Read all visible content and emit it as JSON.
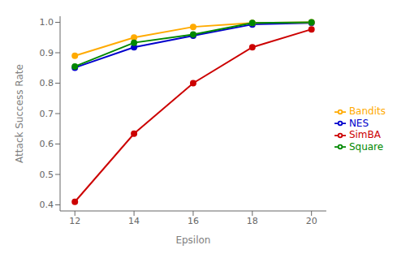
{
  "chart_data": {
    "type": "line",
    "xlabel": "Epsilon",
    "ylabel": "Attack Success Rate",
    "x": [
      12,
      14,
      16,
      18,
      20
    ],
    "series": [
      {
        "name": "NES",
        "color": "#0000cc",
        "values": [
          0.851,
          0.918,
          0.956,
          0.993,
          0.998
        ]
      },
      {
        "name": "Bandits",
        "color": "#ffaa00",
        "values": [
          0.89,
          0.95,
          0.985,
          0.998,
          1.0
        ]
      },
      {
        "name": "Square",
        "color": "#008800",
        "values": [
          0.855,
          0.933,
          0.96,
          0.998,
          1.0
        ]
      },
      {
        "name": "SimBA",
        "color": "#cc0000",
        "values": [
          0.41,
          0.634,
          0.8,
          0.918,
          0.977
        ]
      }
    ],
    "xlim": [
      11.5,
      20.5
    ],
    "ylim": [
      0.38,
      1.02
    ],
    "xticks": [
      12,
      14,
      16,
      18,
      20
    ],
    "yticks": [
      0.4,
      0.5,
      0.6,
      0.7,
      0.8,
      0.9,
      {
        "value": 1.0,
        "label": "1.0"
      }
    ],
    "marker": "circle",
    "grid": false,
    "legend": "right"
  }
}
